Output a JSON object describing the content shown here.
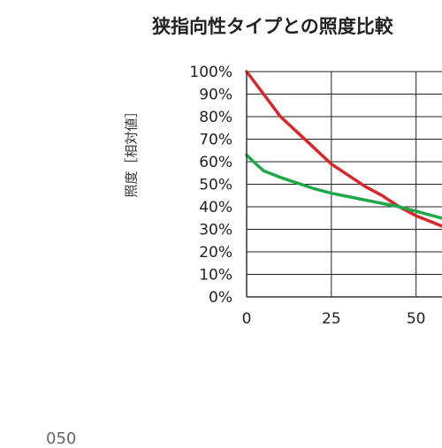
{
  "chart_data": {
    "type": "line",
    "title": "狭指向性タイプとの照度比較",
    "xlabel": "",
    "ylabel": "照度［相対値］",
    "xlim": [
      0,
      60
    ],
    "ylim": [
      0,
      100
    ],
    "x_ticks": [
      "0",
      "25",
      "50"
    ],
    "y_ticks": [
      "0%",
      "10%",
      "20%",
      "30%",
      "40%",
      "50%",
      "60%",
      "70%",
      "80%",
      "90%",
      "100%"
    ],
    "grid": true,
    "colors": [
      "#d9262b",
      "#1fa84a"
    ],
    "series": [
      {
        "x": [
          0,
          5,
          10,
          15,
          20,
          25,
          30,
          35,
          40,
          45,
          50,
          55,
          60
        ],
        "values": [
          100,
          90,
          80,
          73,
          66,
          59,
          54,
          49,
          45,
          40,
          36,
          33,
          30
        ]
      },
      {
        "x": [
          0,
          2,
          5,
          10,
          15,
          20,
          25,
          30,
          35,
          40,
          45,
          50,
          55,
          60
        ],
        "values": [
          63,
          60,
          56,
          53,
          50.5,
          48,
          46,
          44.5,
          43,
          41.5,
          40,
          38,
          36,
          34
        ]
      }
    ]
  },
  "footer": {
    "fragment": "050"
  }
}
